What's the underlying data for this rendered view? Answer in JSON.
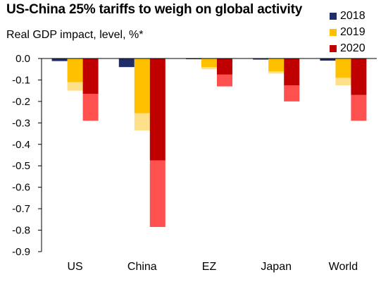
{
  "chart_data": {
    "type": "bar",
    "title": "US-China 25% tariffs to weigh on global activity",
    "subtitle": "Real GDP impact, level, %*",
    "categories": [
      "US",
      "China",
      "EZ",
      "Japan",
      "World"
    ],
    "yticks": [
      "0.0",
      "-0.1",
      "-0.2",
      "-0.3",
      "-0.4",
      "-0.5",
      "-0.6",
      "-0.7",
      "-0.8",
      "-0.9"
    ],
    "ylim": [
      -0.9,
      0
    ],
    "grid": false,
    "legend_position": "top-right",
    "series": [
      {
        "name": "2018",
        "color": "#1f2d6b",
        "light_color": "#1f2d6b",
        "values": [
          -0.012,
          -0.04,
          -0.003,
          -0.005,
          -0.01
        ],
        "ranges": [
          null,
          null,
          null,
          null,
          null
        ]
      },
      {
        "name": "2019",
        "color": "#ffc000",
        "light_color": "#ffe08a",
        "values": [
          -0.11,
          -0.255,
          -0.04,
          -0.06,
          -0.09
        ],
        "ranges": [
          -0.15,
          -0.335,
          -0.05,
          -0.07,
          -0.125
        ]
      },
      {
        "name": "2020",
        "color": "#c00000",
        "light_color": "#ff5050",
        "values": [
          -0.165,
          -0.475,
          -0.075,
          -0.125,
          -0.17
        ],
        "ranges": [
          -0.29,
          -0.785,
          -0.13,
          -0.2,
          -0.29
        ]
      }
    ]
  }
}
